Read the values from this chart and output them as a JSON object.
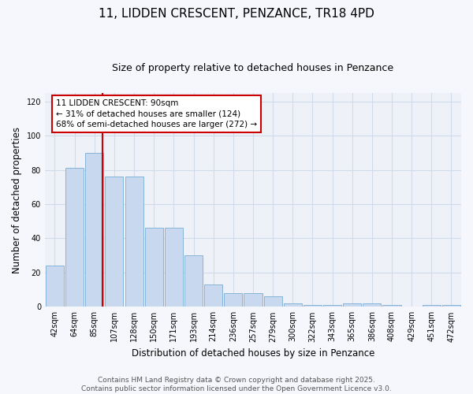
{
  "title": "11, LIDDEN CRESCENT, PENZANCE, TR18 4PD",
  "subtitle": "Size of property relative to detached houses in Penzance",
  "xlabel": "Distribution of detached houses by size in Penzance",
  "ylabel": "Number of detached properties",
  "bar_color": "#c8d8ee",
  "bar_edge_color": "#7aadd4",
  "categories": [
    "42sqm",
    "64sqm",
    "85sqm",
    "107sqm",
    "128sqm",
    "150sqm",
    "171sqm",
    "193sqm",
    "214sqm",
    "236sqm",
    "257sqm",
    "279sqm",
    "300sqm",
    "322sqm",
    "343sqm",
    "365sqm",
    "386sqm",
    "408sqm",
    "429sqm",
    "451sqm",
    "472sqm"
  ],
  "values": [
    24,
    81,
    90,
    76,
    76,
    46,
    46,
    30,
    13,
    8,
    8,
    6,
    2,
    1,
    1,
    2,
    2,
    1,
    0,
    1,
    1
  ],
  "ylim": [
    0,
    125
  ],
  "yticks": [
    0,
    20,
    40,
    60,
    80,
    100,
    120
  ],
  "property_line_index": 2,
  "annotation_title": "11 LIDDEN CRESCENT: 90sqm",
  "annotation_line1": "← 31% of detached houses are smaller (124)",
  "annotation_line2": "68% of semi-detached houses are larger (272) →",
  "annotation_box_color": "#ffffff",
  "annotation_box_edge_color": "#cc0000",
  "vline_color": "#cc0000",
  "grid_color": "#d0daea",
  "background_color": "#eef2f8",
  "fig_background_color": "#f5f7fc",
  "footer_line1": "Contains HM Land Registry data © Crown copyright and database right 2025.",
  "footer_line2": "Contains public sector information licensed under the Open Government Licence v3.0.",
  "title_fontsize": 11,
  "subtitle_fontsize": 9,
  "axis_label_fontsize": 8.5,
  "tick_fontsize": 7,
  "annotation_fontsize": 7.5,
  "footer_fontsize": 6.5
}
